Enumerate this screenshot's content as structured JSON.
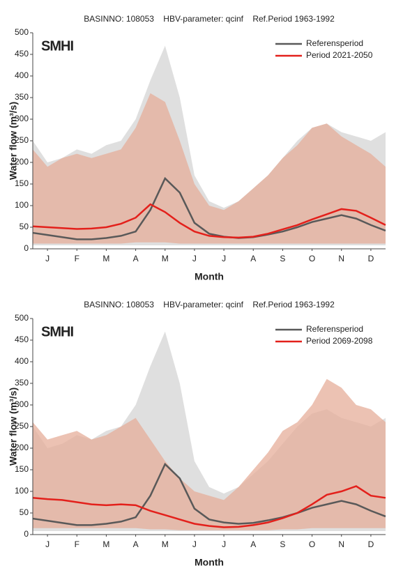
{
  "chart_data": [
    {
      "type": "line",
      "title": "BASINNO: 108053    HBV-parameter: qcinf    Ref.Period 1963-1992",
      "watermark": "SMHI",
      "xlabel": "Month",
      "ylabel": "Water flow (m³/s)",
      "x": [
        0,
        0.5,
        1,
        1.5,
        2,
        2.5,
        3,
        3.5,
        4,
        4.5,
        5,
        5.5,
        6,
        6.5,
        7,
        7.5,
        8,
        8.5,
        9,
        9.5,
        10,
        10.5,
        11,
        11.5,
        12
      ],
      "xlim": [
        0,
        12
      ],
      "xticks": [
        {
          "value": 0.5,
          "label": "J"
        },
        {
          "value": 1.5,
          "label": "F"
        },
        {
          "value": 2.5,
          "label": "M"
        },
        {
          "value": 3.5,
          "label": "A"
        },
        {
          "value": 4.5,
          "label": "M"
        },
        {
          "value": 5.5,
          "label": "J"
        },
        {
          "value": 6.5,
          "label": "J"
        },
        {
          "value": 7.5,
          "label": "A"
        },
        {
          "value": 8.5,
          "label": "S"
        },
        {
          "value": 9.5,
          "label": "O"
        },
        {
          "value": 10.5,
          "label": "N"
        },
        {
          "value": 11.5,
          "label": "D"
        }
      ],
      "ylim": [
        0,
        500
      ],
      "yticks": [
        0,
        50,
        100,
        150,
        200,
        250,
        300,
        350,
        400,
        450,
        500
      ],
      "legend": "upper right",
      "bands": [
        {
          "color": "#d9d9d9",
          "high": [
            250,
            200,
            210,
            230,
            220,
            240,
            250,
            300,
            390,
            470,
            350,
            170,
            110,
            95,
            110,
            140,
            170,
            210,
            250,
            280,
            290,
            270,
            260,
            250,
            270
          ],
          "low": [
            8,
            8,
            8,
            8,
            8,
            8,
            8,
            8,
            8,
            8,
            8,
            8,
            8,
            8,
            8,
            8,
            8,
            8,
            8,
            8,
            8,
            8,
            8,
            8,
            8
          ]
        },
        {
          "color": "#e6ad9a",
          "high": [
            230,
            190,
            210,
            220,
            210,
            220,
            230,
            280,
            360,
            340,
            250,
            150,
            100,
            90,
            110,
            140,
            170,
            210,
            240,
            280,
            290,
            260,
            240,
            220,
            190
          ],
          "low": [
            12,
            12,
            12,
            12,
            12,
            12,
            12,
            15,
            15,
            15,
            12,
            12,
            12,
            12,
            12,
            12,
            12,
            12,
            12,
            12,
            12,
            12,
            12,
            12,
            12
          ]
        }
      ],
      "series": [
        {
          "name": "Referensperiod",
          "color": "#595959",
          "values": [
            37,
            32,
            27,
            22,
            22,
            25,
            30,
            40,
            90,
            163,
            130,
            60,
            35,
            28,
            25,
            27,
            33,
            40,
            50,
            62,
            70,
            78,
            70,
            55,
            42
          ]
        },
        {
          "name": "Period 2021-2050",
          "color": "#e3201b",
          "values": [
            52,
            50,
            48,
            46,
            47,
            50,
            58,
            72,
            103,
            85,
            60,
            40,
            30,
            27,
            26,
            28,
            35,
            45,
            55,
            68,
            80,
            92,
            88,
            72,
            55
          ]
        }
      ]
    },
    {
      "type": "line",
      "title": "BASINNO: 108053    HBV-parameter: qcinf    Ref.Period 1963-1992",
      "watermark": "SMHI",
      "xlabel": "Month",
      "ylabel": "Water flow (m³/s)",
      "x": [
        0,
        0.5,
        1,
        1.5,
        2,
        2.5,
        3,
        3.5,
        4,
        4.5,
        5,
        5.5,
        6,
        6.5,
        7,
        7.5,
        8,
        8.5,
        9,
        9.5,
        10,
        10.5,
        11,
        11.5,
        12
      ],
      "xlim": [
        0,
        12
      ],
      "xticks": [
        {
          "value": 0.5,
          "label": "J"
        },
        {
          "value": 1.5,
          "label": "F"
        },
        {
          "value": 2.5,
          "label": "M"
        },
        {
          "value": 3.5,
          "label": "A"
        },
        {
          "value": 4.5,
          "label": "M"
        },
        {
          "value": 5.5,
          "label": "J"
        },
        {
          "value": 6.5,
          "label": "J"
        },
        {
          "value": 7.5,
          "label": "A"
        },
        {
          "value": 8.5,
          "label": "S"
        },
        {
          "value": 9.5,
          "label": "O"
        },
        {
          "value": 10.5,
          "label": "N"
        },
        {
          "value": 11.5,
          "label": "D"
        }
      ],
      "ylim": [
        0,
        500
      ],
      "yticks": [
        0,
        50,
        100,
        150,
        200,
        250,
        300,
        350,
        400,
        450,
        500
      ],
      "legend": "upper right",
      "bands": [
        {
          "color": "#d9d9d9",
          "high": [
            250,
            200,
            210,
            230,
            220,
            240,
            250,
            300,
            390,
            470,
            350,
            170,
            110,
            95,
            110,
            140,
            170,
            210,
            250,
            280,
            290,
            270,
            260,
            250,
            270
          ],
          "low": [
            8,
            8,
            8,
            8,
            8,
            8,
            8,
            8,
            8,
            8,
            8,
            8,
            8,
            8,
            8,
            8,
            8,
            8,
            8,
            8,
            8,
            8,
            8,
            8,
            8
          ]
        },
        {
          "color": "#e6ad9a",
          "high": [
            260,
            220,
            230,
            240,
            220,
            230,
            250,
            270,
            220,
            170,
            130,
            100,
            90,
            80,
            110,
            150,
            190,
            240,
            260,
            300,
            360,
            340,
            300,
            290,
            260
          ],
          "low": [
            15,
            15,
            15,
            15,
            15,
            15,
            15,
            15,
            12,
            12,
            10,
            10,
            10,
            10,
            10,
            10,
            10,
            12,
            12,
            15,
            15,
            15,
            15,
            15,
            15
          ]
        }
      ],
      "series": [
        {
          "name": "Referensperiod",
          "color": "#595959",
          "values": [
            37,
            32,
            27,
            22,
            22,
            25,
            30,
            40,
            90,
            163,
            130,
            60,
            35,
            28,
            25,
            27,
            33,
            40,
            50,
            62,
            70,
            78,
            70,
            55,
            42
          ]
        },
        {
          "name": "Period 2069-2098",
          "color": "#e3201b",
          "values": [
            85,
            82,
            80,
            75,
            70,
            68,
            70,
            68,
            55,
            45,
            35,
            25,
            20,
            17,
            18,
            22,
            28,
            38,
            50,
            70,
            92,
            100,
            112,
            90,
            85
          ]
        }
      ]
    }
  ]
}
